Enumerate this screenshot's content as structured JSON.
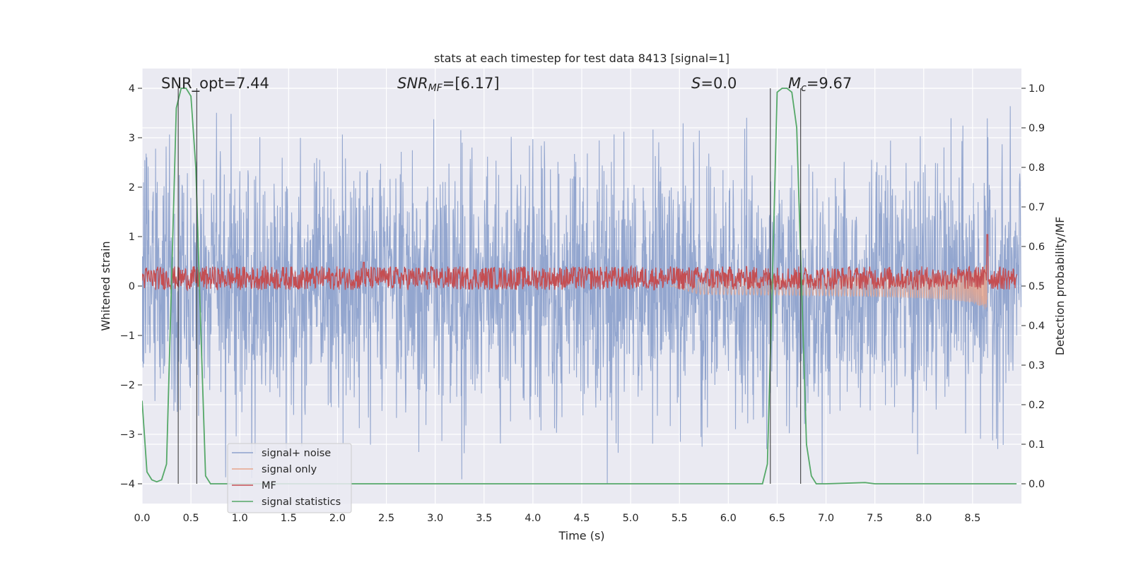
{
  "chart_data": {
    "type": "line",
    "title": "stats at each timestep for test data 8413 [signal=1]",
    "xlabel": "Time (s)",
    "ylabel": "Whitened strain",
    "y2label": "Detection probability/MF",
    "xlim": [
      0.0,
      9.0
    ],
    "ylim": [
      -4.4,
      4.4
    ],
    "y2lim": [
      -0.05,
      1.05
    ],
    "grid": true,
    "x_ticks": [
      "0.0",
      "0.5",
      "1.0",
      "1.5",
      "2.0",
      "2.5",
      "3.0",
      "3.5",
      "4.0",
      "4.5",
      "5.0",
      "5.5",
      "6.0",
      "6.5",
      "7.0",
      "7.5",
      "8.0",
      "8.5"
    ],
    "y_ticks": [
      "−4",
      "−3",
      "−2",
      "−1",
      "0",
      "1",
      "2",
      "3",
      "4"
    ],
    "y2_ticks": [
      "0.0",
      "0.1",
      "0.2",
      "0.3",
      "0.4",
      "0.5",
      "0.6",
      "0.7",
      "0.8",
      "0.9",
      "1.0"
    ],
    "annotations": {
      "snr_opt": "SNR_opt=7.44",
      "snr_mf_var": "SNR",
      "snr_mf_sub": "MF",
      "snr_mf_val": "=[6.17]",
      "s_var": "S",
      "s_val": "=0.0",
      "mc_var": "M",
      "mc_sub": "c",
      "mc_val": "=9.67"
    },
    "legend": {
      "position": "lower-left",
      "entries": [
        {
          "label": "signal+ noise",
          "color": "#8ea2cc"
        },
        {
          "label": "signal only",
          "color": "#e8a58b"
        },
        {
          "label": "MF",
          "color": "#c44e52"
        },
        {
          "label": "signal statistics",
          "color": "#55a868"
        }
      ]
    },
    "series": [
      {
        "name": "signal statistics",
        "axis": "right",
        "x": [
          0.0,
          0.05,
          0.1,
          0.15,
          0.2,
          0.25,
          0.3,
          0.35,
          0.4,
          0.45,
          0.5,
          0.55,
          0.6,
          0.65,
          0.7,
          0.75,
          0.8,
          1.0,
          2.0,
          3.0,
          4.0,
          4.8,
          5.0,
          6.0,
          6.35,
          6.4,
          6.45,
          6.5,
          6.55,
          6.6,
          6.65,
          6.7,
          6.75,
          6.8,
          6.85,
          6.9,
          7.0,
          7.4,
          7.5,
          8.0,
          8.5,
          8.95
        ],
        "y": [
          0.21,
          0.03,
          0.01,
          0.005,
          0.01,
          0.05,
          0.5,
          0.95,
          1.0,
          1.0,
          0.98,
          0.8,
          0.4,
          0.02,
          0.0,
          0.0,
          0.0,
          0.0,
          0.0,
          0.0,
          0.0,
          0.0,
          0.0,
          0.0,
          0.0,
          0.05,
          0.5,
          0.99,
          1.0,
          1.0,
          0.99,
          0.9,
          0.5,
          0.1,
          0.02,
          0.0,
          0.0,
          0.003,
          0.0,
          0.0,
          0.0,
          0.0
        ]
      },
      {
        "name": "signal only",
        "axis": "left",
        "chirp_start": 5.4,
        "chirp_end": 8.65,
        "peak_amplitude": 1.0
      },
      {
        "name": "MF",
        "axis": "right",
        "baseline": 0.52,
        "noise_band": 0.03,
        "peaks": [
          {
            "x": 2.27,
            "y": 0.56
          },
          {
            "x": 8.65,
            "y": 0.63
          }
        ]
      },
      {
        "name": "signal+ noise",
        "axis": "left",
        "std": 1.0,
        "max_abs": 4.0
      }
    ],
    "vertical_markers": [
      0.37,
      0.56,
      6.43,
      6.74
    ]
  }
}
